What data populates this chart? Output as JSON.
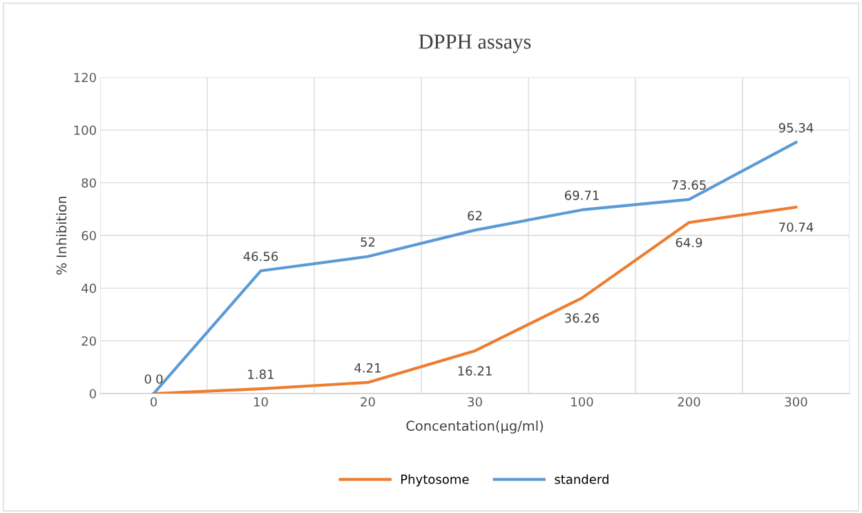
{
  "chart_data": {
    "type": "line",
    "title": "DPPH assays",
    "xlabel": "Concentation(µg/ml)",
    "ylabel": "% Inhibition",
    "categories": [
      "0",
      "10",
      "20",
      "30",
      "100",
      "200",
      "300"
    ],
    "series": [
      {
        "name": "Phytosome",
        "color": "#ed7d31",
        "values": [
          0,
          1.81,
          4.21,
          16.21,
          36.26,
          64.9,
          70.74
        ]
      },
      {
        "name": "standerd",
        "color": "#5b9bd5",
        "values": [
          0,
          46.56,
          52,
          62,
          69.71,
          73.65,
          95.34
        ]
      }
    ],
    "ylim": [
      0,
      120
    ],
    "yticks": [
      0,
      20,
      40,
      60,
      80,
      100,
      120
    ],
    "grid": true,
    "legend": "bottom",
    "data_labels": true,
    "marker": "none",
    "line_style": "solid"
  }
}
